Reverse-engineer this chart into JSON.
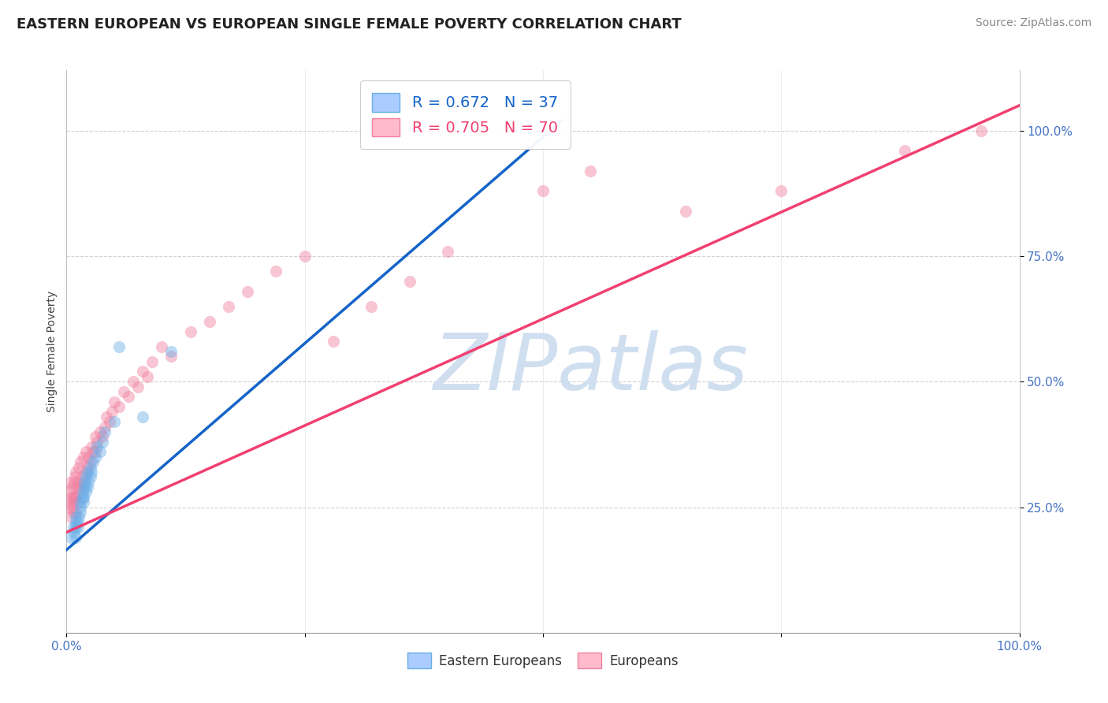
{
  "title": "EASTERN EUROPEAN VS EUROPEAN SINGLE FEMALE POVERTY CORRELATION CHART",
  "source": "Source: ZipAtlas.com",
  "ylabel": "Single Female Poverty",
  "xlim": [
    0,
    1.0
  ],
  "ylim": [
    0.0,
    1.12
  ],
  "ytick_labels": [
    "25.0%",
    "50.0%",
    "75.0%",
    "100.0%"
  ],
  "ytick_positions": [
    0.25,
    0.5,
    0.75,
    1.0
  ],
  "watermark_text": "ZIPatlas",
  "blue_scatter_x": [
    0.005,
    0.007,
    0.008,
    0.01,
    0.01,
    0.01,
    0.01,
    0.012,
    0.012,
    0.013,
    0.015,
    0.015,
    0.015,
    0.017,
    0.017,
    0.018,
    0.018,
    0.019,
    0.019,
    0.02,
    0.02,
    0.022,
    0.022,
    0.023,
    0.025,
    0.025,
    0.026,
    0.028,
    0.03,
    0.032,
    0.035,
    0.038,
    0.04,
    0.05,
    0.055,
    0.08,
    0.11
  ],
  "blue_scatter_y": [
    0.19,
    0.21,
    0.2,
    0.22,
    0.19,
    0.21,
    0.23,
    0.21,
    0.22,
    0.23,
    0.25,
    0.24,
    0.26,
    0.27,
    0.28,
    0.26,
    0.27,
    0.29,
    0.3,
    0.28,
    0.31,
    0.29,
    0.32,
    0.3,
    0.31,
    0.33,
    0.32,
    0.34,
    0.35,
    0.37,
    0.36,
    0.38,
    0.4,
    0.42,
    0.57,
    0.43,
    0.56
  ],
  "pink_scatter_x": [
    0.002,
    0.003,
    0.004,
    0.004,
    0.005,
    0.005,
    0.006,
    0.006,
    0.007,
    0.007,
    0.008,
    0.008,
    0.009,
    0.009,
    0.01,
    0.01,
    0.01,
    0.011,
    0.012,
    0.012,
    0.013,
    0.013,
    0.015,
    0.015,
    0.016,
    0.018,
    0.018,
    0.02,
    0.02,
    0.022,
    0.023,
    0.025,
    0.026,
    0.028,
    0.03,
    0.03,
    0.032,
    0.035,
    0.038,
    0.04,
    0.042,
    0.045,
    0.048,
    0.05,
    0.055,
    0.06,
    0.065,
    0.07,
    0.075,
    0.08,
    0.085,
    0.09,
    0.1,
    0.11,
    0.13,
    0.15,
    0.17,
    0.19,
    0.22,
    0.25,
    0.28,
    0.32,
    0.36,
    0.4,
    0.5,
    0.55,
    0.65,
    0.75,
    0.88,
    0.96
  ],
  "pink_scatter_y": [
    0.28,
    0.25,
    0.27,
    0.3,
    0.23,
    0.26,
    0.25,
    0.29,
    0.24,
    0.27,
    0.26,
    0.3,
    0.27,
    0.31,
    0.24,
    0.27,
    0.32,
    0.29,
    0.26,
    0.3,
    0.28,
    0.33,
    0.29,
    0.34,
    0.31,
    0.3,
    0.35,
    0.32,
    0.36,
    0.33,
    0.35,
    0.34,
    0.37,
    0.36,
    0.36,
    0.39,
    0.38,
    0.4,
    0.39,
    0.41,
    0.43,
    0.42,
    0.44,
    0.46,
    0.45,
    0.48,
    0.47,
    0.5,
    0.49,
    0.52,
    0.51,
    0.54,
    0.57,
    0.55,
    0.6,
    0.62,
    0.65,
    0.68,
    0.72,
    0.75,
    0.58,
    0.65,
    0.7,
    0.76,
    0.88,
    0.92,
    0.84,
    0.88,
    0.96,
    1.0
  ],
  "blue_line_x": [
    0.0,
    0.52
  ],
  "blue_line_y": [
    0.165,
    1.02
  ],
  "pink_line_x": [
    0.0,
    1.0
  ],
  "pink_line_y": [
    0.2,
    1.05
  ],
  "scatter_size": 120,
  "scatter_alpha": 0.45,
  "blue_color": "#6aaee8",
  "pink_color": "#f080a0",
  "blue_line_color": "#1464c8",
  "pink_line_color": "#f04070",
  "background_color": "#ffffff",
  "grid_color": "#cccccc",
  "title_fontsize": 13,
  "axis_label_fontsize": 10,
  "tick_fontsize": 11,
  "source_fontsize": 10,
  "legend_fontsize": 14,
  "watermark_color": "#d0dff0",
  "watermark_fontsize": 72
}
